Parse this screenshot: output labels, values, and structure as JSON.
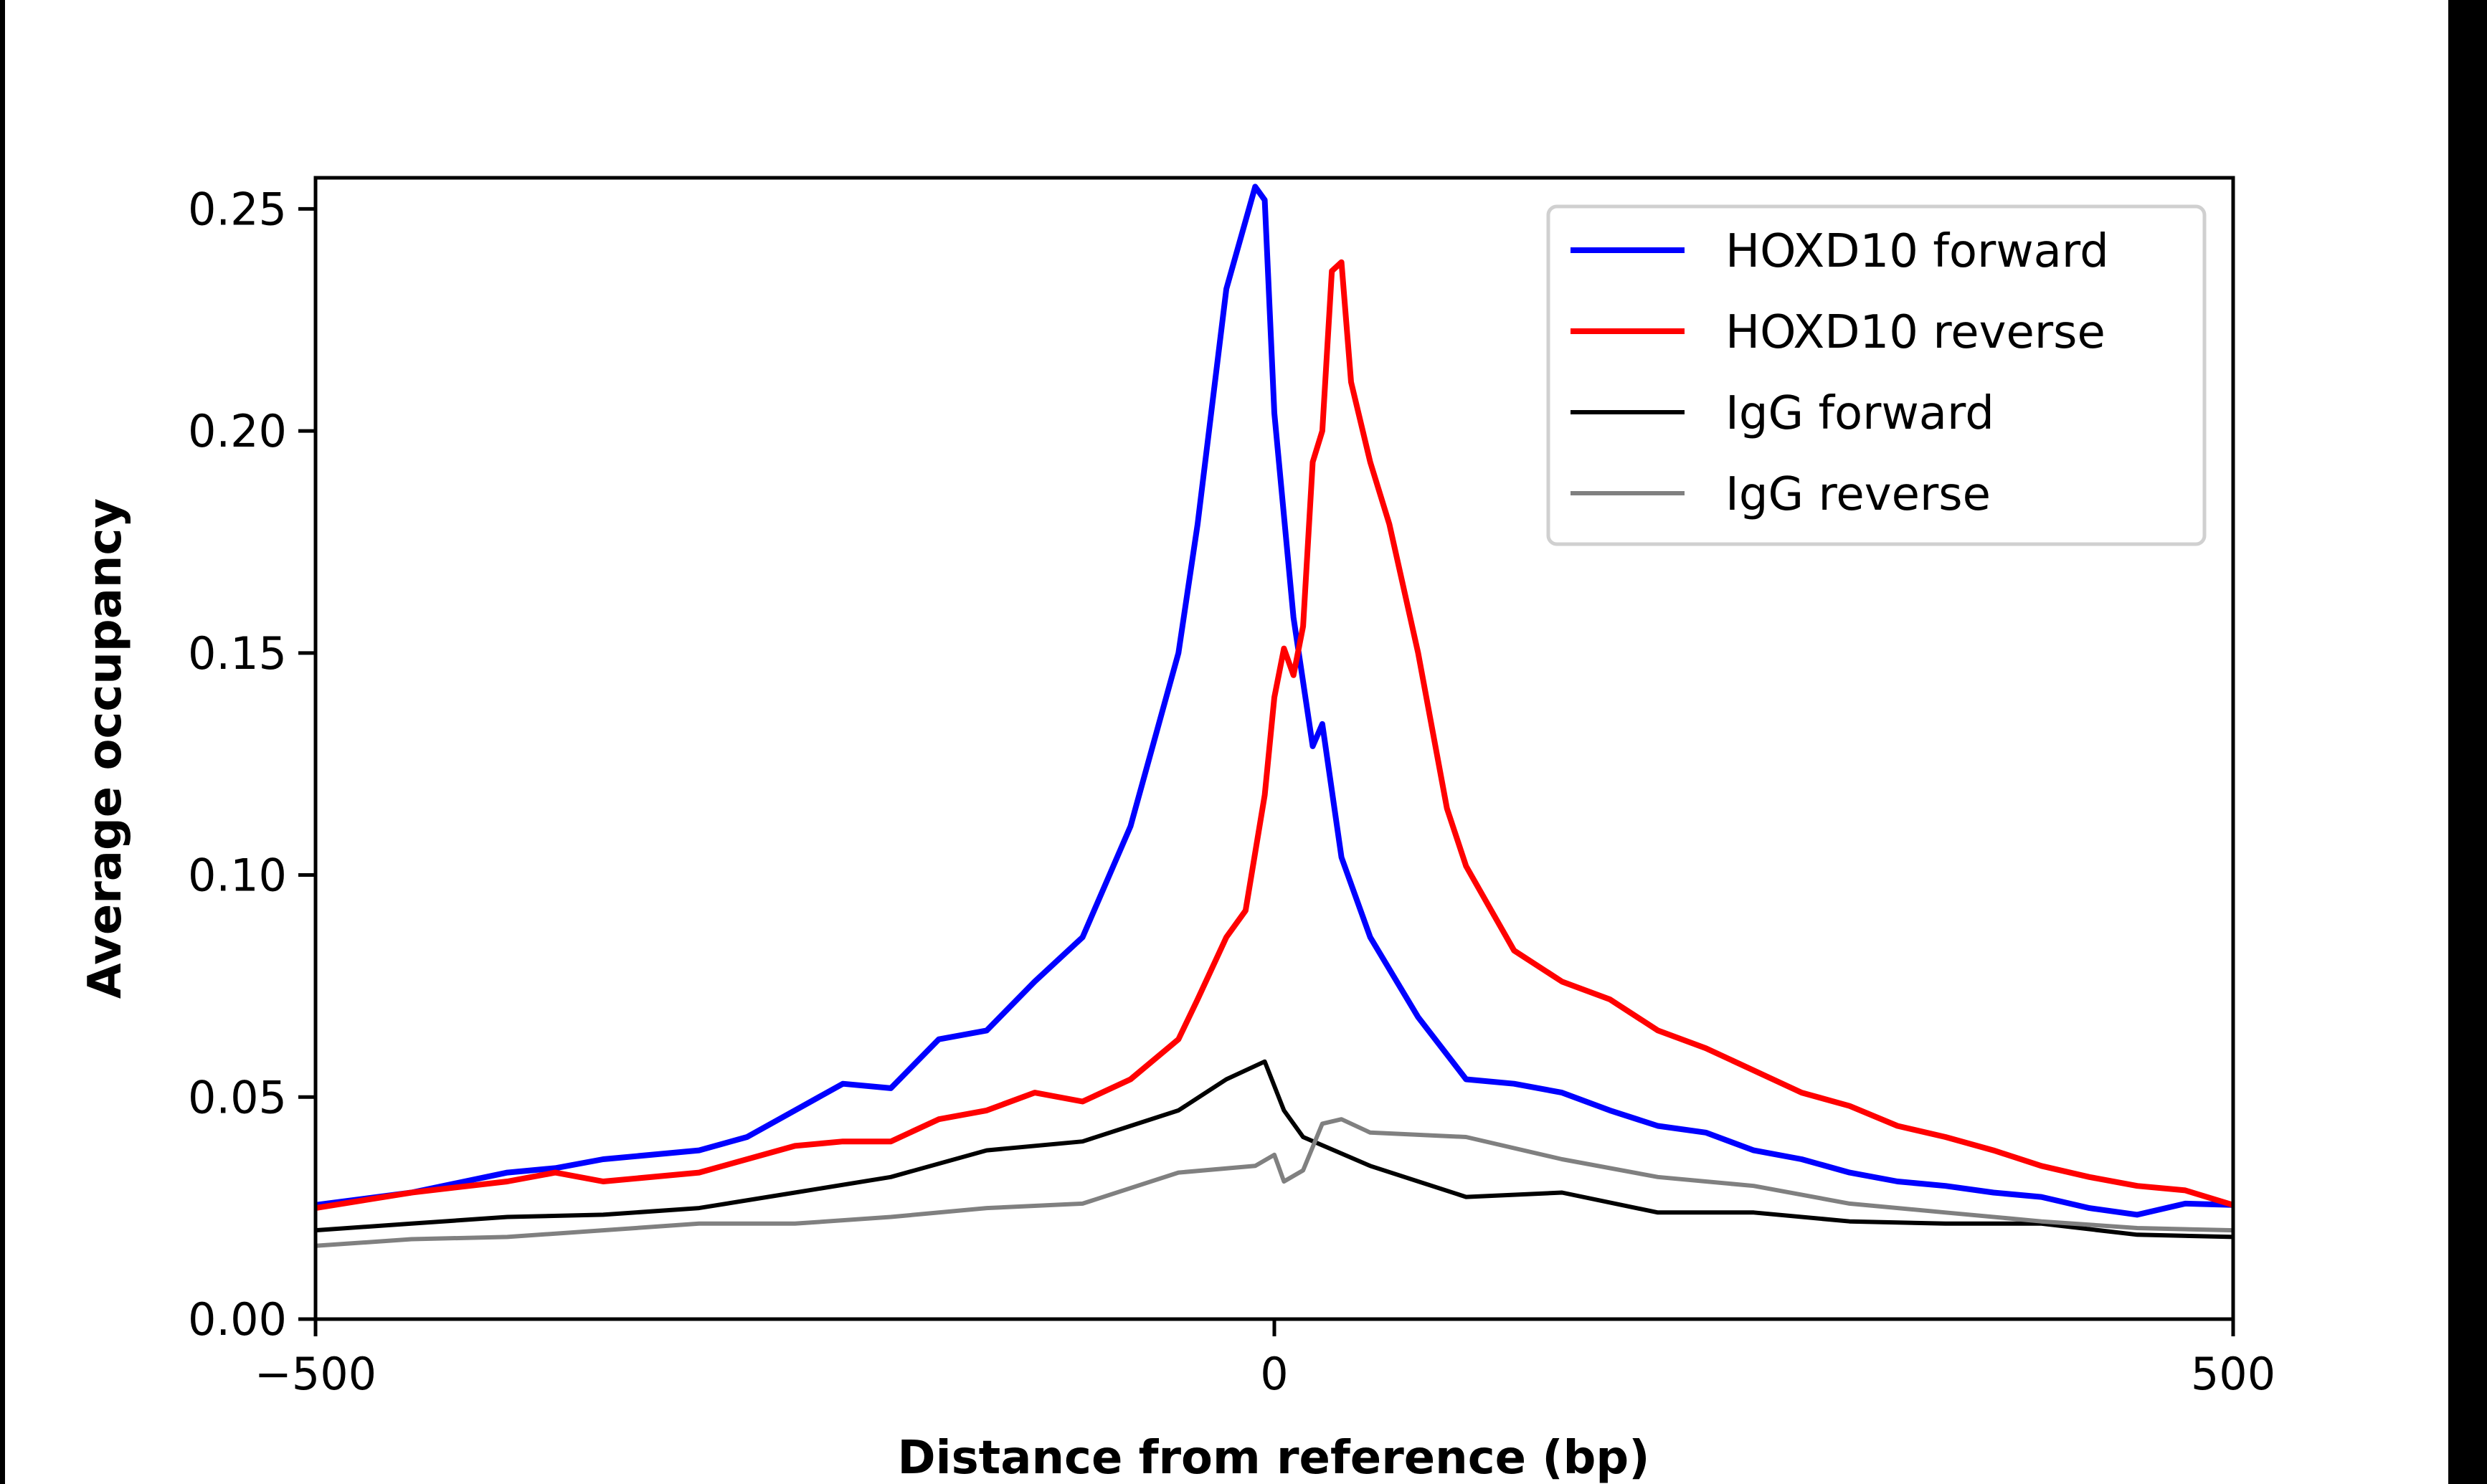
{
  "chart_data": {
    "type": "line",
    "title": "",
    "xlabel": "Distance from reference (bp)",
    "ylabel": "Average occupancy",
    "xlim": [
      -500,
      500
    ],
    "ylim": [
      0,
      0.257
    ],
    "xticks": [
      -500,
      0,
      500
    ],
    "xtick_labels": [
      "−500",
      "0",
      "500"
    ],
    "yticks": [
      0,
      0.05,
      0.1,
      0.15,
      0.2,
      0.25
    ],
    "ytick_labels": [
      "0.00",
      "0.05",
      "0.10",
      "0.15",
      "0.20",
      "0.25"
    ],
    "grid": false,
    "legend_position": "top-right",
    "series": [
      {
        "name": "HOXD10 forward",
        "color": "#0000ff",
        "x": [
          -500,
          -450,
          -400,
          -375,
          -350,
          -300,
          -275,
          -250,
          -225,
          -200,
          -175,
          -150,
          -125,
          -100,
          -75,
          -50,
          -40,
          -25,
          -10,
          -5,
          0,
          10,
          20,
          25,
          35,
          50,
          75,
          100,
          125,
          150,
          175,
          200,
          225,
          250,
          275,
          300,
          325,
          350,
          375,
          400,
          425,
          450,
          475,
          500
        ],
        "y": [
          0.0257,
          0.0285,
          0.033,
          0.034,
          0.036,
          0.038,
          0.041,
          0.047,
          0.053,
          0.052,
          0.063,
          0.065,
          0.076,
          0.086,
          0.111,
          0.15,
          0.179,
          0.232,
          0.255,
          0.252,
          0.204,
          0.158,
          0.129,
          0.134,
          0.104,
          0.086,
          0.068,
          0.054,
          0.053,
          0.051,
          0.047,
          0.0435,
          0.042,
          0.038,
          0.036,
          0.033,
          0.031,
          0.03,
          0.0285,
          0.0275,
          0.025,
          0.0235,
          0.026,
          0.0257
        ]
      },
      {
        "name": "HOXD10 reverse",
        "color": "#ff0000",
        "x": [
          -500,
          -450,
          -400,
          -375,
          -350,
          -300,
          -250,
          -225,
          -200,
          -175,
          -150,
          -125,
          -100,
          -75,
          -50,
          -40,
          -25,
          -15,
          -5,
          0,
          5,
          10,
          15,
          20,
          25,
          30,
          35,
          40,
          50,
          60,
          75,
          90,
          100,
          125,
          150,
          175,
          200,
          225,
          250,
          275,
          300,
          325,
          350,
          375,
          400,
          425,
          450,
          475,
          500
        ],
        "y": [
          0.025,
          0.0285,
          0.031,
          0.033,
          0.031,
          0.033,
          0.039,
          0.04,
          0.04,
          0.045,
          0.047,
          0.051,
          0.049,
          0.054,
          0.063,
          0.072,
          0.086,
          0.092,
          0.118,
          0.14,
          0.151,
          0.145,
          0.156,
          0.193,
          0.2,
          0.236,
          0.238,
          0.211,
          0.193,
          0.179,
          0.15,
          0.115,
          0.102,
          0.083,
          0.076,
          0.072,
          0.065,
          0.061,
          0.056,
          0.051,
          0.048,
          0.0435,
          0.041,
          0.038,
          0.0345,
          0.032,
          0.03,
          0.029,
          0.0257
        ]
      },
      {
        "name": "IgG forward",
        "color": "#000000",
        "x": [
          -500,
          -450,
          -400,
          -350,
          -300,
          -250,
          -200,
          -150,
          -100,
          -75,
          -50,
          -25,
          -5,
          5,
          15,
          50,
          100,
          150,
          200,
          250,
          300,
          350,
          400,
          450,
          500
        ],
        "y": [
          0.02,
          0.0215,
          0.023,
          0.0235,
          0.025,
          0.0285,
          0.032,
          0.038,
          0.04,
          0.0435,
          0.047,
          0.054,
          0.058,
          0.047,
          0.041,
          0.0345,
          0.0275,
          0.0285,
          0.024,
          0.024,
          0.022,
          0.0215,
          0.0215,
          0.019,
          0.0185
        ]
      },
      {
        "name": "IgG reverse",
        "color": "#808080",
        "x": [
          -500,
          -450,
          -400,
          -350,
          -300,
          -250,
          -200,
          -150,
          -100,
          -50,
          -10,
          0,
          5,
          15,
          25,
          35,
          50,
          100,
          150,
          200,
          250,
          300,
          350,
          400,
          450,
          500
        ],
        "y": [
          0.0165,
          0.018,
          0.0185,
          0.02,
          0.0215,
          0.0215,
          0.023,
          0.025,
          0.026,
          0.033,
          0.0345,
          0.037,
          0.031,
          0.0335,
          0.044,
          0.045,
          0.042,
          0.041,
          0.036,
          0.032,
          0.03,
          0.026,
          0.024,
          0.022,
          0.0205,
          0.02
        ]
      }
    ]
  }
}
